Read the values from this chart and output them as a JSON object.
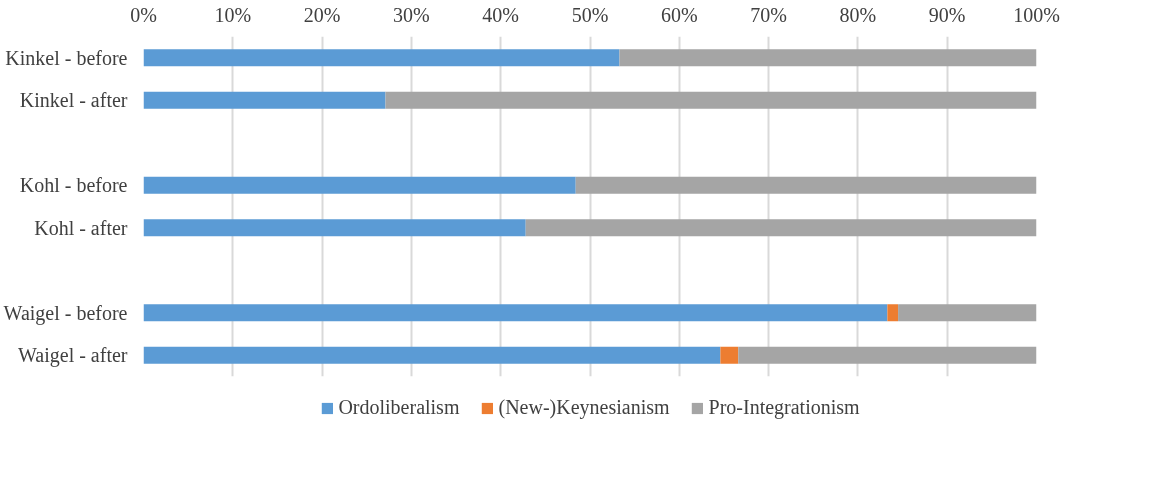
{
  "chart_data": {
    "type": "bar",
    "orientation": "horizontal",
    "stacked": true,
    "categories": [
      "Kinkel - before",
      "Kinkel - after",
      null,
      "Kohl - before",
      "Kohl - after",
      null,
      "Waigel - before",
      "Waigel - after"
    ],
    "series": [
      {
        "name": "Ordoliberalism",
        "color": "#5b9bd5",
        "values": [
          53.3,
          27.1,
          null,
          48.4,
          42.8,
          null,
          83.3,
          64.6
        ]
      },
      {
        "name": "(New-)Keynesianism",
        "color": "#ed7d31",
        "values": [
          0,
          0,
          null,
          0,
          0,
          null,
          1.2,
          2.0
        ]
      },
      {
        "name": "Pro-Integrationism",
        "color": "#a5a5a5",
        "values": [
          46.7,
          72.9,
          null,
          51.6,
          57.2,
          null,
          15.5,
          33.4
        ]
      }
    ],
    "xlim": [
      0,
      100
    ],
    "xticks": [
      {
        "value": 0,
        "label": "0%"
      },
      {
        "value": 10,
        "label": "10%"
      },
      {
        "value": 20,
        "label": "20%"
      },
      {
        "value": 30,
        "label": "30%"
      },
      {
        "value": 40,
        "label": "40%"
      },
      {
        "value": 50,
        "label": "50%"
      },
      {
        "value": 60,
        "label": "60%"
      },
      {
        "value": 70,
        "label": "70%"
      },
      {
        "value": 80,
        "label": "80%"
      },
      {
        "value": 90,
        "label": "90%"
      },
      {
        "value": 100,
        "label": "100%"
      }
    ],
    "grid": "x",
    "legend": "bottom"
  }
}
